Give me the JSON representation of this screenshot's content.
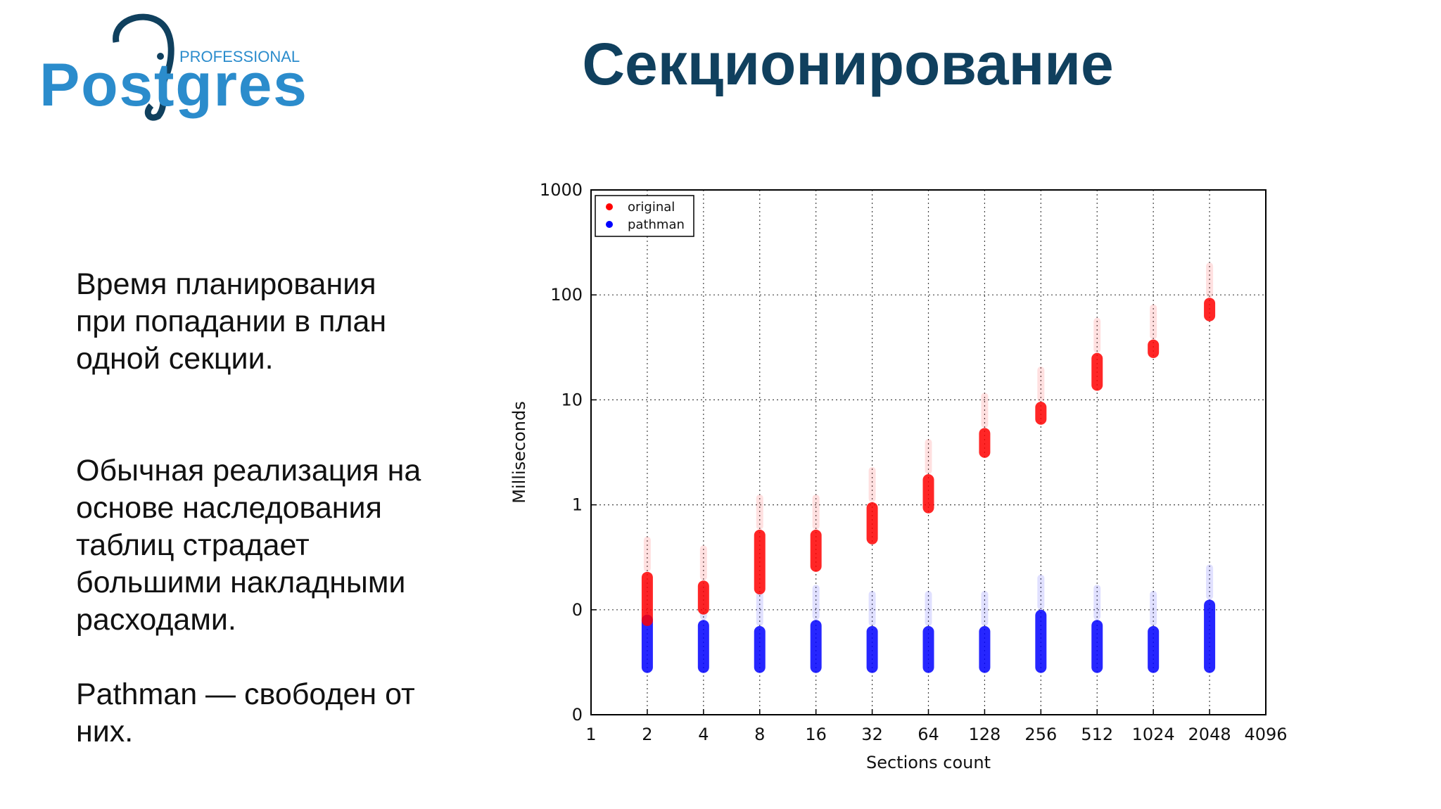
{
  "logo": {
    "name": "Postgres",
    "tagline": "PROFESSIONAL"
  },
  "title": "Секционирование",
  "body": [
    [
      "Время планирования",
      "при попадании в план",
      "одной секции."
    ],
    [
      "Обычная реализация на",
      "основе наследования",
      "таблиц страдает",
      "большими накладными",
      "расходами."
    ],
    [
      "Pathman — свободен от",
      "них."
    ]
  ],
  "chart_data": {
    "type": "scatter",
    "xlabel": "Sections count",
    "ylabel": "Milliseconds",
    "xscale": "log2",
    "yscale": "log",
    "xlim": [
      1,
      4096
    ],
    "xticks": [
      1,
      2,
      4,
      8,
      16,
      32,
      64,
      128,
      256,
      512,
      1024,
      2048,
      4096
    ],
    "ylim": [
      0.01,
      1000
    ],
    "yticks": [
      1000,
      100,
      10,
      1,
      {
        "value": 0.1,
        "label": "0"
      },
      {
        "value": 0.01,
        "label": "0"
      }
    ],
    "grid": true,
    "legend": "upper left",
    "x": [
      2,
      4,
      8,
      16,
      32,
      64,
      128,
      256,
      512,
      1024,
      2048
    ],
    "series": [
      {
        "name": "pathman",
        "color": "#0000ff",
        "low": [
          0.025,
          0.025,
          0.025,
          0.025,
          0.025,
          0.025,
          0.025,
          0.025,
          0.025,
          0.025,
          0.025
        ],
        "high": [
          0.09,
          0.08,
          0.07,
          0.08,
          0.07,
          0.07,
          0.07,
          0.1,
          0.08,
          0.07,
          0.125
        ]
      },
      {
        "name": "original",
        "color": "#ff0000",
        "low": [
          0.07,
          0.09,
          0.14,
          0.23,
          0.42,
          0.83,
          2.8,
          5.8,
          12.2,
          25,
          56
        ],
        "high": [
          0.23,
          0.19,
          0.58,
          0.58,
          1.06,
          1.96,
          5.4,
          9.6,
          28,
          37.6,
          94
        ]
      }
    ]
  }
}
